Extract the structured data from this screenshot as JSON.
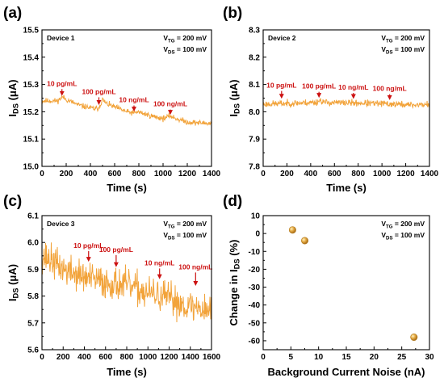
{
  "chart_data": [
    {
      "type": "line",
      "panel_label": "(a)",
      "device_label": "Device 1",
      "conditions": {
        "v_tg": {
          "sym": "V",
          "sub": "TG",
          "val": " = 200 mV"
        },
        "v_ds": {
          "sym": "V",
          "sub": "DS",
          "val": " = 100 mV"
        }
      },
      "xlabel": "Time (s)",
      "ylabel": {
        "sym": "I",
        "sub": "DS",
        "unit": " (μA)"
      },
      "xlim": [
        0,
        1400
      ],
      "ylim": [
        15.0,
        15.5
      ],
      "xticks": [
        0,
        200,
        400,
        600,
        800,
        1000,
        1200,
        1400
      ],
      "yticks": [
        15.0,
        15.1,
        15.2,
        15.3,
        15.4,
        15.5
      ],
      "y_decimals": 1,
      "line_color": "#f2a33a",
      "trace": {
        "noise": 0.005,
        "seed": 11,
        "base": [
          [
            0,
            15.24
          ],
          [
            130,
            15.24
          ],
          [
            170,
            15.255
          ],
          [
            200,
            15.245
          ],
          [
            300,
            15.225
          ],
          [
            440,
            15.21
          ],
          [
            470,
            15.215
          ],
          [
            500,
            15.245
          ],
          [
            530,
            15.23
          ],
          [
            700,
            15.2
          ],
          [
            760,
            15.195
          ],
          [
            790,
            15.2
          ],
          [
            900,
            15.185
          ],
          [
            1000,
            15.175
          ],
          [
            1060,
            15.185
          ],
          [
            1090,
            15.178
          ],
          [
            1200,
            15.162
          ],
          [
            1400,
            15.157
          ]
        ]
      },
      "annotations": [
        {
          "label": "10 pg/mL",
          "x": 165,
          "label_y": 15.295,
          "arrow_to_y": 15.255
        },
        {
          "label": "100 pg/mL",
          "x": 470,
          "label_y": 15.265,
          "arrow_to_y": 15.222
        },
        {
          "label": "10 ng/mL",
          "x": 760,
          "label_y": 15.235,
          "arrow_to_y": 15.198
        },
        {
          "label": "100 ng/mL",
          "x": 1060,
          "label_y": 15.22,
          "arrow_to_y": 15.186
        }
      ]
    },
    {
      "type": "line",
      "panel_label": "(b)",
      "device_label": "Device 2",
      "conditions": {
        "v_tg": {
          "sym": "V",
          "sub": "TG",
          "val": " = 200 mV"
        },
        "v_ds": {
          "sym": "V",
          "sub": "DS",
          "val": " = 100 mV"
        }
      },
      "xlabel": "Time (s)",
      "ylabel": {
        "sym": "I",
        "sub": "DS",
        "unit": " (μA)"
      },
      "xlim": [
        0,
        1400
      ],
      "ylim": [
        7.8,
        8.3
      ],
      "xticks": [
        0,
        200,
        400,
        600,
        800,
        1000,
        1200,
        1400
      ],
      "yticks": [
        7.8,
        7.9,
        8.0,
        8.1,
        8.2,
        8.3
      ],
      "y_decimals": 1,
      "line_color": "#f2a33a",
      "trace": {
        "noise": 0.006,
        "seed": 23,
        "base": [
          [
            0,
            8.028
          ],
          [
            150,
            8.03
          ],
          [
            300,
            8.032
          ],
          [
            450,
            8.035
          ],
          [
            480,
            8.042
          ],
          [
            520,
            8.034
          ],
          [
            800,
            8.032
          ],
          [
            1100,
            8.028
          ],
          [
            1250,
            8.025
          ],
          [
            1400,
            8.027
          ]
        ]
      },
      "annotations": [
        {
          "label": "10 pg/mL",
          "x": 155,
          "label_y": 8.088,
          "arrow_to_y": 8.045
        },
        {
          "label": "100 pg/mL",
          "x": 470,
          "label_y": 8.085,
          "arrow_to_y": 8.048
        },
        {
          "label": "10 ng/mL",
          "x": 760,
          "label_y": 8.081,
          "arrow_to_y": 8.044
        },
        {
          "label": "100 ng/mL",
          "x": 1065,
          "label_y": 8.076,
          "arrow_to_y": 8.04
        }
      ]
    },
    {
      "type": "line",
      "panel_label": "(c)",
      "device_label": "Device 3",
      "conditions": {
        "v_tg": {
          "sym": "V",
          "sub": "TG",
          "val": " = 200 mV"
        },
        "v_ds": {
          "sym": "V",
          "sub": "DS",
          "val": " = 100 mV"
        }
      },
      "xlabel": "Time (s)",
      "ylabel": {
        "sym": "I",
        "sub": "DS",
        "unit": " (μA)"
      },
      "xlim": [
        0,
        1600
      ],
      "ylim": [
        5.6,
        6.1
      ],
      "xticks": [
        0,
        200,
        400,
        600,
        800,
        1000,
        1200,
        1400,
        1600
      ],
      "yticks": [
        5.6,
        5.7,
        5.8,
        5.9,
        6.0,
        6.1
      ],
      "y_decimals": 1,
      "line_color": "#f2a33a",
      "trace": {
        "noise": 0.03,
        "seed": 37,
        "base": [
          [
            0,
            5.95
          ],
          [
            60,
            5.94
          ],
          [
            200,
            5.9
          ],
          [
            400,
            5.87
          ],
          [
            600,
            5.85
          ],
          [
            800,
            5.84
          ],
          [
            1000,
            5.81
          ],
          [
            1200,
            5.79
          ],
          [
            1400,
            5.76
          ],
          [
            1600,
            5.75
          ]
        ]
      },
      "annotations": [
        {
          "label": "10 pg/mL",
          "x": 440,
          "label_y": 5.98,
          "arrow_to_y": 5.925
        },
        {
          "label": "100 pg/mL",
          "x": 700,
          "label_y": 5.965,
          "arrow_to_y": 5.905
        },
        {
          "label": "10 ng/mL",
          "x": 1110,
          "label_y": 5.915,
          "arrow_to_y": 5.86
        },
        {
          "label": "100 ng/mL",
          "x": 1450,
          "label_y": 5.9,
          "arrow_to_y": 5.835
        }
      ]
    },
    {
      "type": "scatter",
      "panel_label": "(d)",
      "conditions": {
        "v_tg": {
          "sym": "V",
          "sub": "TG",
          "val": " = 200 mV"
        },
        "v_ds": {
          "sym": "V",
          "sub": "DS",
          "val": " = 100 mV"
        }
      },
      "xlabel": "Background Current Noise (nA)",
      "ylabel": {
        "pre": "Change in ",
        "sym": "I",
        "sub": "DS",
        "unit": " (%)"
      },
      "xlim": [
        0,
        30
      ],
      "ylim": [
        -65,
        10
      ],
      "xticks": [
        0,
        5,
        10,
        15,
        20,
        25,
        30
      ],
      "yticks": [
        10,
        0,
        -10,
        -20,
        -30,
        -40,
        -50,
        -60
      ],
      "y_decimals": 0,
      "marker_color": "#e8b04a",
      "points": [
        {
          "x": 5.3,
          "y": 2
        },
        {
          "x": 7.5,
          "y": -4
        },
        {
          "x": 27.2,
          "y": -58
        }
      ]
    }
  ]
}
